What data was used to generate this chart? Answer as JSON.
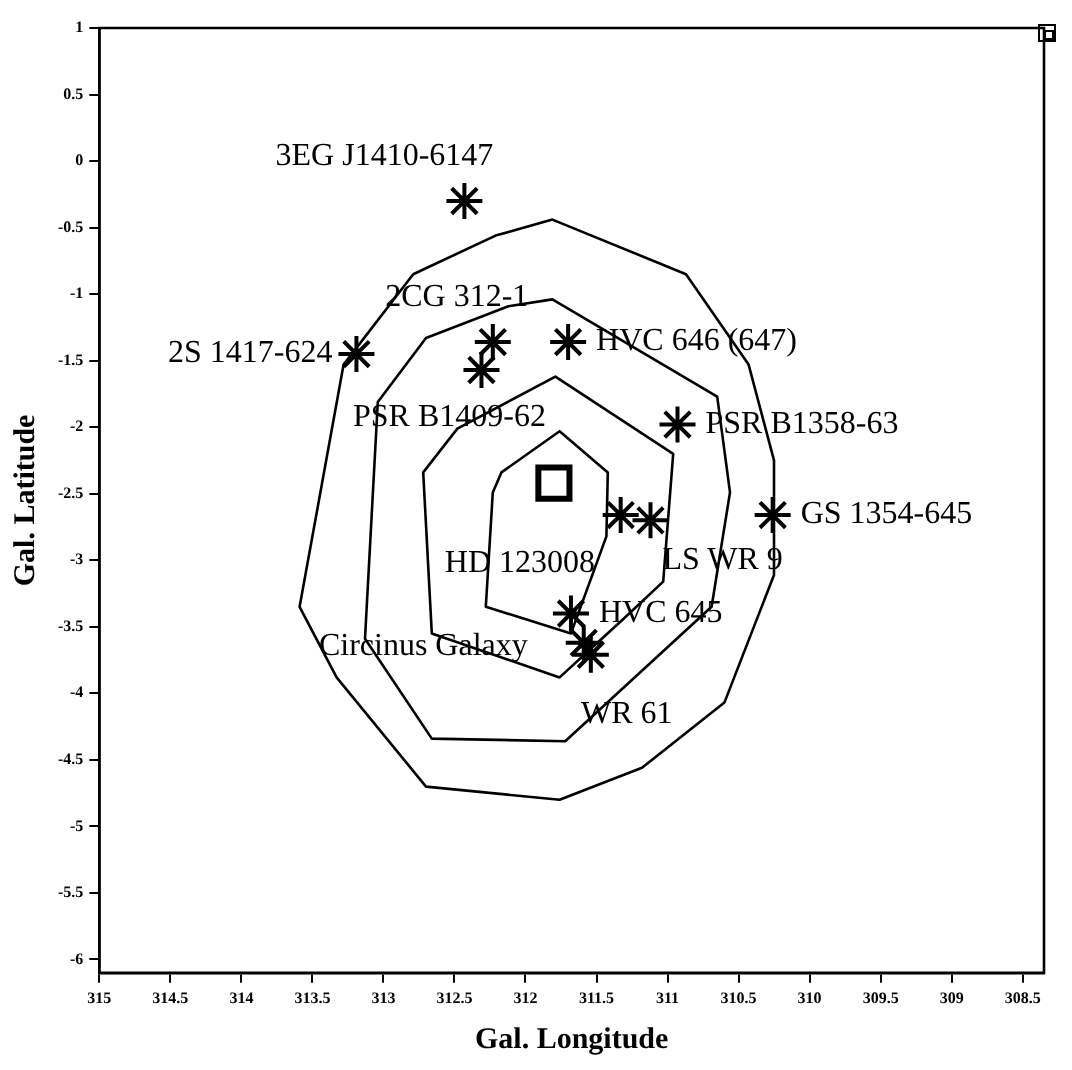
{
  "chart_data": {
    "type": "scatter",
    "xlabel": "Gal. Longitude",
    "ylabel": "Gal. Latitude",
    "xlim": [
      315,
      308.35
    ],
    "xticks": [
      315,
      314.5,
      314,
      313.5,
      313,
      312.5,
      312,
      311.5,
      311,
      310.5,
      310,
      309.5,
      309,
      308.5
    ],
    "ylim": [
      -6.1,
      1
    ],
    "yticks": [
      1,
      0.5,
      0,
      -0.5,
      -1,
      -1.5,
      -2,
      -2.5,
      -3,
      -3.5,
      -4,
      -4.5,
      -5,
      -5.5,
      -6
    ],
    "grid": false,
    "legend": false,
    "series": [
      {
        "marker": "cross",
        "color": "#000000",
        "x": [
          312.43,
          313.19,
          312.23,
          312.31,
          311.7,
          310.93,
          311.33,
          311.12,
          310.26,
          311.68,
          311.59,
          311.54
        ],
        "values": [
          -0.3,
          -1.45,
          -1.36,
          -1.57,
          -1.36,
          -1.98,
          -2.66,
          -2.7,
          -2.66,
          -3.4,
          -3.62,
          -3.71
        ]
      },
      {
        "marker": "square",
        "color": "#000000",
        "x": [
          311.8
        ],
        "values": [
          -2.42
        ]
      }
    ],
    "annotations": [
      {
        "text": "3EG J1410-6147",
        "x": 312.43,
        "y": -0.3
      },
      {
        "text": "2S 1417-624",
        "x": 313.19,
        "y": -1.45
      },
      {
        "text": "2CG 312-1",
        "x": 312.23,
        "y": -1.36
      },
      {
        "text": "PSR B1409-62",
        "x": 312.31,
        "y": -1.57
      },
      {
        "text": "HVC 646 (647)",
        "x": 311.7,
        "y": -1.36
      },
      {
        "text": "PSR B1358-63",
        "x": 310.93,
        "y": -1.98
      },
      {
        "text": "HD 123008",
        "x": 311.8,
        "y": -2.42
      },
      {
        "text": "LS WR 9",
        "x": 311.12,
        "y": -2.7
      },
      {
        "text": "GS 1354-645",
        "x": 310.26,
        "y": -2.66
      },
      {
        "text": "HVC 645",
        "x": 311.68,
        "y": -3.4
      },
      {
        "text": "Circinus Galaxy",
        "x": 311.59,
        "y": -3.62
      },
      {
        "text": "WR 61",
        "x": 311.54,
        "y": -3.71
      }
    ]
  }
}
